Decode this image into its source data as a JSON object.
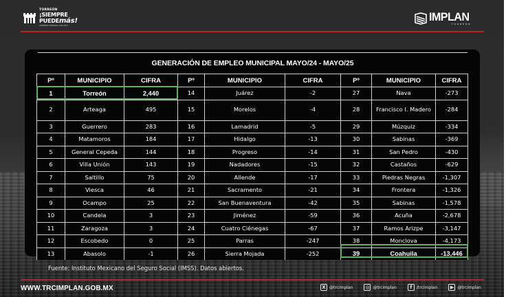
{
  "header": {
    "left_logo": {
      "line1": "TORREÓN",
      "line2": "¡SIEMPRE",
      "line3_prefix": "PUEDE",
      "line3_accent": "más!",
      "line4": "GOBIERNO MUNICIPAL 2025-2027"
    },
    "right_logo": {
      "name": "IMPLAN",
      "subtitle": "TORREÓN"
    }
  },
  "title": "GENERACIÓN DE EMPLEO MUNICIPAL MAYO/24 - MAYO/25",
  "table": {
    "columns": [
      "Pº",
      "MUNICIPIO",
      "CIFRA",
      "Pº",
      "MUNICIPIO",
      "CIFRA",
      "Pº",
      "MUNICIPIO",
      "CIFRA"
    ],
    "rows": [
      [
        {
          "pos": "1",
          "name": "Torreón",
          "value": "2,440"
        },
        {
          "pos": "14",
          "name": "Juárez",
          "value": "-2"
        },
        {
          "pos": "27",
          "name": "Nava",
          "value": "-273"
        }
      ],
      [
        {
          "pos": "2",
          "name": "Arteaga",
          "value": "495"
        },
        {
          "pos": "15",
          "name": "Morelos",
          "value": "-4"
        },
        {
          "pos": "28",
          "name": "Francisco I. Madero",
          "value": "-284"
        }
      ],
      [
        {
          "pos": "3",
          "name": "Guerrero",
          "value": "283"
        },
        {
          "pos": "16",
          "name": "Lamadrid",
          "value": "-5"
        },
        {
          "pos": "29",
          "name": "Múzquiz",
          "value": "-334"
        }
      ],
      [
        {
          "pos": "4",
          "name": "Matamoros",
          "value": "184"
        },
        {
          "pos": "17",
          "name": "Hidalgo",
          "value": "-13"
        },
        {
          "pos": "30",
          "name": "Sabinas",
          "value": "-369"
        }
      ],
      [
        {
          "pos": "5",
          "name": "General Cepeda",
          "value": "144"
        },
        {
          "pos": "18",
          "name": "Progreso",
          "value": "-14"
        },
        {
          "pos": "31",
          "name": "San Pedro",
          "value": "-430"
        }
      ],
      [
        {
          "pos": "6",
          "name": "Villa Unión",
          "value": "143"
        },
        {
          "pos": "19",
          "name": "Nadadores",
          "value": "-15"
        },
        {
          "pos": "32",
          "name": "Castaños",
          "value": "-629"
        }
      ],
      [
        {
          "pos": "7",
          "name": "Saltillo",
          "value": "75"
        },
        {
          "pos": "20",
          "name": "Allende",
          "value": "-17"
        },
        {
          "pos": "33",
          "name": "Piedras Negras",
          "value": "-1,307"
        }
      ],
      [
        {
          "pos": "8",
          "name": "Viesca",
          "value": "46"
        },
        {
          "pos": "21",
          "name": "Sacramento",
          "value": "-21"
        },
        {
          "pos": "34",
          "name": "Frontera",
          "value": "-1,326"
        }
      ],
      [
        {
          "pos": "9",
          "name": "Ocampo",
          "value": "25"
        },
        {
          "pos": "22",
          "name": "San Buenaventura",
          "value": "-42"
        },
        {
          "pos": "35",
          "name": "Sabinas",
          "value": "-1,578"
        }
      ],
      [
        {
          "pos": "10",
          "name": "Candela",
          "value": "3"
        },
        {
          "pos": "23",
          "name": "Jiménez",
          "value": "-59"
        },
        {
          "pos": "36",
          "name": "Acuña",
          "value": "-2,678"
        }
      ],
      [
        {
          "pos": "11",
          "name": "Zaragoza",
          "value": "3"
        },
        {
          "pos": "24",
          "name": "Cuatro Ciénegas",
          "value": "-67"
        },
        {
          "pos": "37",
          "name": "Ramos Arizpe",
          "value": "-3,147"
        }
      ],
      [
        {
          "pos": "12",
          "name": "Escobedo",
          "value": "0"
        },
        {
          "pos": "25",
          "name": "Parras",
          "value": "-247"
        },
        {
          "pos": "38",
          "name": "Monclova",
          "value": "-4,173"
        }
      ],
      [
        {
          "pos": "13",
          "name": "Abasolo",
          "value": "-1"
        },
        {
          "pos": "26",
          "name": "Sierra Mojada",
          "value": "-252"
        },
        {
          "pos": "39",
          "name": "Coahuila",
          "value": "-13,446"
        }
      ]
    ],
    "highlight_color": "#5fb25f"
  },
  "source": "Fuente: Instituto Mexicano del Seguro Social (IMSS). Datos abiertos.",
  "footer": {
    "website": "WWW.TRCIMPLAN.GOB.MX",
    "socials": [
      {
        "icon": "x-icon",
        "glyph": "X",
        "handle": "@trcimplan"
      },
      {
        "icon": "instagram-icon",
        "glyph": "◎",
        "handle": "@trcimplan"
      },
      {
        "icon": "facebook-icon",
        "glyph": "f",
        "handle": "/trcimplan"
      },
      {
        "icon": "youtube-icon",
        "glyph": "▶",
        "handle": "@trcimplan"
      }
    ]
  },
  "colors": {
    "accent_red": "#b02a22",
    "highlight_green": "#5fb25f",
    "panel_bg": "#050505"
  }
}
